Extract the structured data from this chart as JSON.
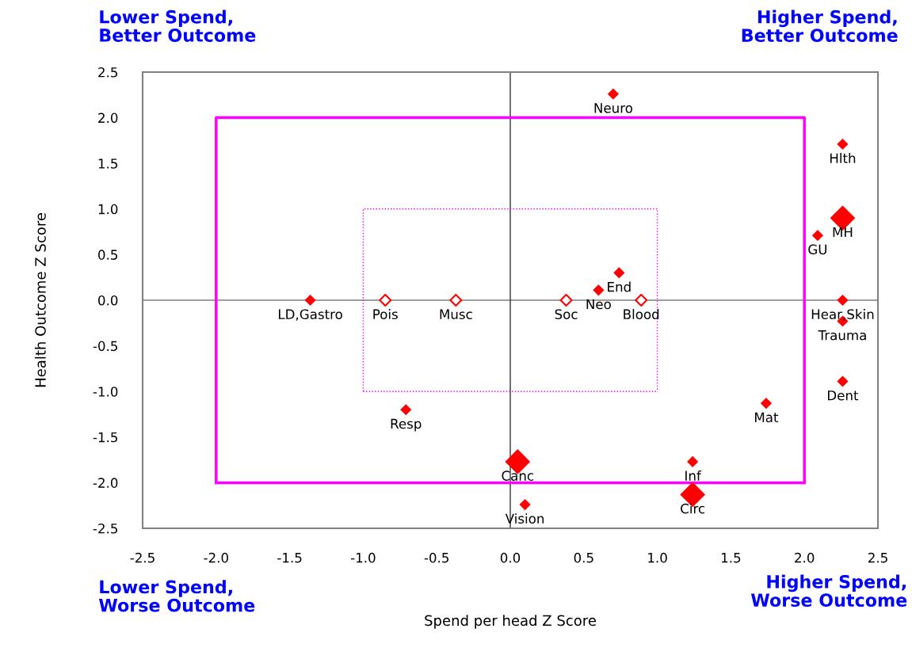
{
  "chart_data": {
    "type": "bubble",
    "xlabel": "Spend per head Z Score",
    "ylabel": "Health Outcome Z Score",
    "xlim": [
      -2.5,
      2.5
    ],
    "ylim": [
      -2.5,
      2.5
    ],
    "xticks": [
      {
        "value": -2.5,
        "label": "-2.5"
      },
      {
        "value": -2.0,
        "label": "-2.0"
      },
      {
        "value": -1.5,
        "label": "-1.5"
      },
      {
        "value": -1.0,
        "label": "-1.0"
      },
      {
        "value": -0.5,
        "label": "-0.5"
      },
      {
        "value": 0,
        "label": "0.0"
      },
      {
        "value": 0.5,
        "label": "0.5"
      },
      {
        "value": 1.0,
        "label": "1.0"
      },
      {
        "value": 1.5,
        "label": "1.5"
      },
      {
        "value": 2.0,
        "label": "2.0"
      },
      {
        "value": 2.5,
        "label": "2.5"
      }
    ],
    "yticks": [
      {
        "value": -2.5,
        "label": "-2.5"
      },
      {
        "value": -2.0,
        "label": "-2.0"
      },
      {
        "value": -1.5,
        "label": "-1.5"
      },
      {
        "value": -1.0,
        "label": "-1.0"
      },
      {
        "value": -0.5,
        "label": "-0.5"
      },
      {
        "value": 0,
        "label": "0.0"
      },
      {
        "value": 0.5,
        "label": "0.5"
      },
      {
        "value": 1.0,
        "label": "1.0"
      },
      {
        "value": 1.5,
        "label": "1.5"
      },
      {
        "value": 2.0,
        "label": "2.0"
      },
      {
        "value": 2.5,
        "label": "2.5"
      }
    ],
    "grid": false,
    "legend": false,
    "series": [
      {
        "type": "line",
        "marker": "none",
        "color": "#ff00ff",
        "line_style": "solid",
        "x": [
          -2,
          -2,
          2,
          2
        ],
        "values": [
          -2,
          2,
          2,
          -2
        ]
      },
      {
        "type": "line",
        "marker": "none",
        "color": "#ff00ff",
        "line_style": "solid",
        "x": [
          -2,
          2
        ],
        "values": [
          -2,
          -2
        ]
      },
      {
        "type": "line",
        "marker": "none",
        "color": "#ff00ff",
        "line_style": "dotted",
        "x": [
          -1,
          -1,
          1,
          1
        ],
        "values": [
          -1,
          1,
          1,
          -1
        ]
      },
      {
        "type": "line",
        "marker": "none",
        "color": "#ff00ff",
        "line_style": "dotted",
        "x": [
          -1,
          1
        ],
        "values": [
          -1,
          -1
        ]
      },
      {
        "marker": "diamond",
        "color": "#ff0000",
        "x": [
          0.7,
          2.26,
          2.26,
          2.09,
          0.74,
          0.6,
          -1.36,
          2.26,
          2.26,
          2.26,
          1.74,
          -0.71,
          0.05,
          1.24,
          1.24,
          0.1
        ],
        "values": [
          2.26,
          1.71,
          0.9,
          0.71,
          0.3,
          0.11,
          0.0,
          0.0,
          -0.23,
          -0.89,
          -1.13,
          -1.2,
          -1.77,
          -1.77,
          -2.13,
          -2.24
        ],
        "sizes": [
          0.2,
          0.2,
          1,
          0.2,
          0.2,
          0.2,
          0.2,
          0.2,
          0.2,
          0.2,
          0.2,
          0.2,
          1,
          0.2,
          1,
          0.2
        ]
      },
      {
        "type": "scatter",
        "marker": "diamond",
        "color": "#ff0000",
        "x": [
          -0.85,
          -0.37,
          0.38,
          0.89
        ],
        "values": [
          0,
          0,
          0,
          0
        ]
      }
    ],
    "ref_lines": [
      {
        "axis": "x",
        "value": 0,
        "color": "#000000"
      },
      {
        "axis": "y",
        "value": 0,
        "color": "#404040"
      }
    ],
    "annotations": [
      {
        "text": "Neuro",
        "x": 0.7,
        "y": 2.26
      },
      {
        "text": "Hlth",
        "x": 2.26,
        "y": 1.71
      },
      {
        "text": "MH",
        "x": 2.26,
        "y": 0.9
      },
      {
        "text": "GU",
        "x": 2.09,
        "y": 0.71
      },
      {
        "text": "End",
        "x": 0.74,
        "y": 0.3
      },
      {
        "text": "Neo",
        "x": 0.6,
        "y": 0.11
      },
      {
        "text": "LD,Gastro",
        "x": -1.36,
        "y": 0.0
      },
      {
        "text": "Hear,Skin",
        "x": 2.26,
        "y": 0.0
      },
      {
        "text": "Trauma",
        "x": 2.26,
        "y": -0.23
      },
      {
        "text": "Dent",
        "x": 2.26,
        "y": -0.89
      },
      {
        "text": "Mat",
        "x": 1.74,
        "y": -1.13
      },
      {
        "text": "Resp",
        "x": -0.71,
        "y": -1.2
      },
      {
        "text": "Canc",
        "x": 0.05,
        "y": -1.77
      },
      {
        "text": "Inf",
        "x": 1.24,
        "y": -1.77
      },
      {
        "text": "Circ",
        "x": 1.24,
        "y": -2.13
      },
      {
        "text": "Vision",
        "x": 0.1,
        "y": -2.24
      },
      {
        "text": "Pois",
        "x": -0.85,
        "y": 0
      },
      {
        "text": "Musc",
        "x": -0.37,
        "y": 0
      },
      {
        "text": "Soc",
        "x": 0.38,
        "y": 0
      },
      {
        "text": "Blood",
        "x": 0.89,
        "y": 0
      },
      "Lower Spend,\nBetter Outcome",
      "Higher Spend,\nBetter Outcome",
      "Lower Spend,\nWorse Outcome",
      "Higher Spend,\nWorse Outcome"
    ]
  }
}
